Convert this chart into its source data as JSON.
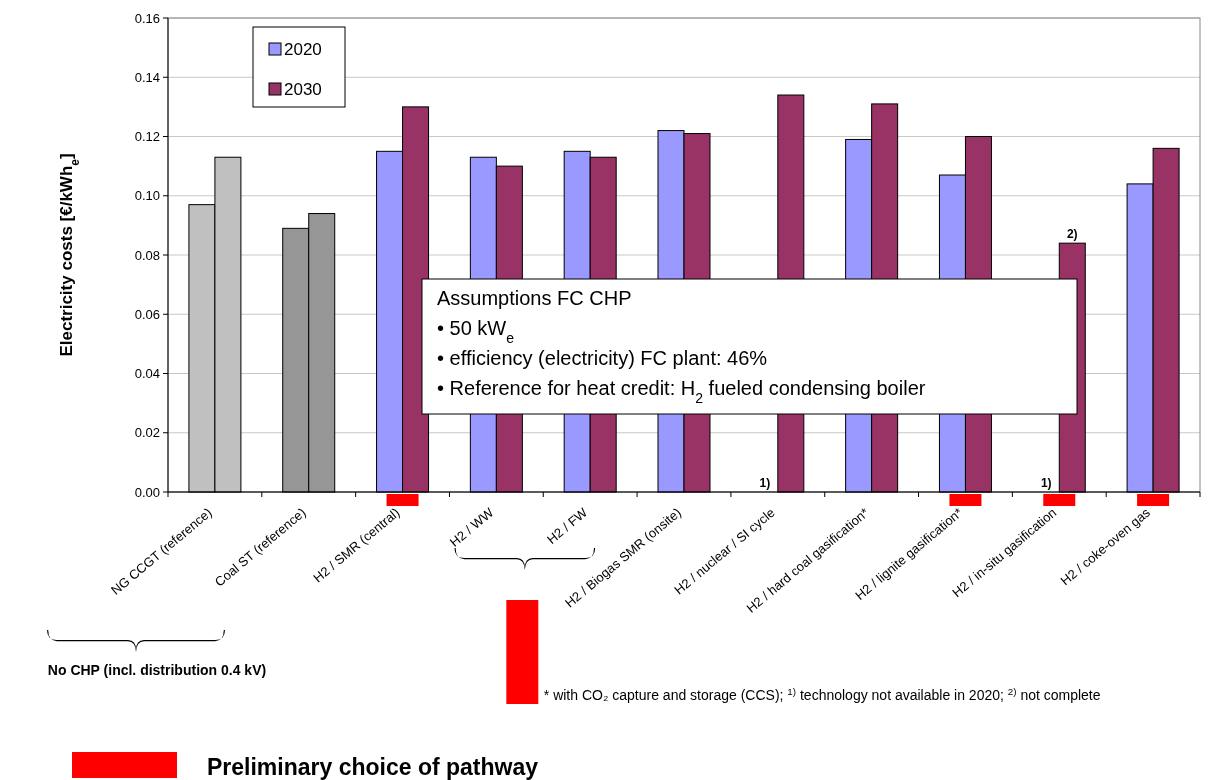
{
  "chart_data": {
    "type": "bar",
    "ylabel": "Electricity costs [€/kWh$_{e}$]",
    "categories": [
      "NG CCGT (reference)",
      "Coal ST (reference)",
      "H2 / SMR (central)",
      "H2 / WW",
      "H2 / FW",
      "H2 / Biogas SMR (onsite)",
      "H2 / nuclear / SI cycle",
      "H2 / hard coal gasification*",
      "H2 / lignite gasification*",
      "H2 / in-situ gasification",
      "H2 / coke-oven gas"
    ],
    "series": [
      {
        "name": "2020",
        "color": "#9999ff",
        "colors": [
          "#c0c0c0",
          "#969696",
          "#9999ff",
          "#9999ff",
          "#9999ff",
          "#9999ff",
          "#9999ff",
          "#9999ff",
          "#9999ff",
          "#9999ff",
          "#9999ff"
        ],
        "values": [
          0.097,
          0.089,
          0.115,
          0.113,
          0.115,
          0.122,
          null,
          0.119,
          0.107,
          null,
          0.104
        ]
      },
      {
        "name": "2030",
        "color": "#993366",
        "colors": [
          "#c0c0c0",
          "#969696",
          "#993366",
          "#993366",
          "#993366",
          "#993366",
          "#993366",
          "#993366",
          "#993366",
          "#993366",
          "#993366"
        ],
        "values": [
          0.113,
          0.094,
          0.13,
          0.11,
          0.113,
          0.121,
          0.134,
          0.131,
          0.12,
          0.084,
          0.116
        ]
      }
    ],
    "ylim": [
      0,
      0.16
    ],
    "yticks": [
      {
        "value": 0,
        "label": "0.00"
      },
      {
        "value": 0.02,
        "label": "0.02"
      },
      {
        "value": 0.04,
        "label": "0.04"
      },
      {
        "value": 0.06,
        "label": "0.06"
      },
      {
        "value": 0.08,
        "label": "0.08"
      },
      {
        "value": 0.1,
        "label": "0.10"
      },
      {
        "value": 0.12,
        "label": "0.12"
      },
      {
        "value": 0.14,
        "label": "0.14"
      },
      {
        "value": 0.16,
        "label": "0.16"
      }
    ],
    "grid": "y",
    "legend": "top left",
    "annotations": [
      "Assumptions FC CHP",
      "• 50 kW$_{e}$",
      "• efficiency (electricity) FC plant: 46%",
      "• Reference for heat credit: H$_{2}$ fueled condensing boiler",
      "No CHP (incl. distribution 0.4 kV)",
      "* with CO₂ capture and storage (CCS); $^{1)}$ technology not available in 2020; $^{2)}$ not complete",
      "Preliminary choice of pathway",
      {
        "text": "1)",
        "x": "H2 / nuclear / SI cycle",
        "y": 0
      },
      {
        "text": "1)",
        "x": "H2 / in-situ gasification",
        "y": 0
      },
      {
        "text": "2)",
        "x": "H2 / in-situ gasification",
        "y": 0.084
      }
    ]
  }
}
